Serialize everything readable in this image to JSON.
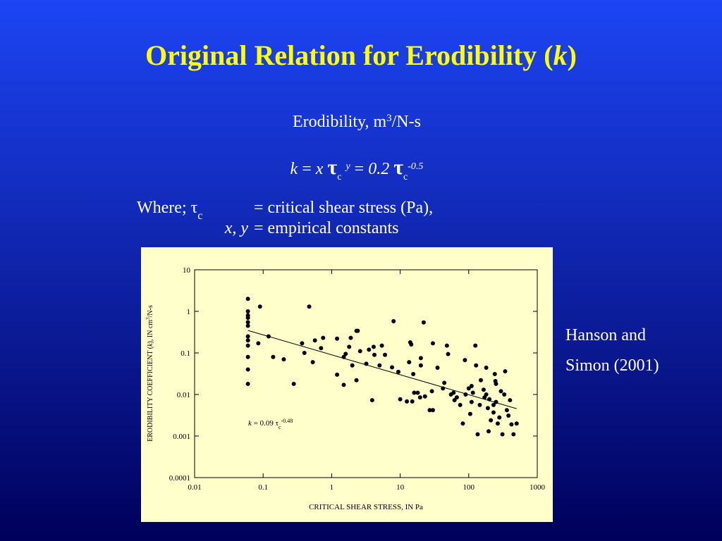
{
  "title": {
    "text": "Original Relation for Erodibility (",
    "italic": "k",
    "close": ")"
  },
  "subtitle": {
    "text": "Erodibility, m",
    "sup": "3",
    "rest": "/N-s"
  },
  "equation": {
    "k": "k",
    "eq": "=",
    "x": "x",
    "tau": "τ",
    "sub": "c",
    "y": "y",
    "coef": "0.2",
    "exp": "-0.5"
  },
  "where": {
    "lead": "Where;",
    "tau": "τ",
    "sub": "c",
    "def1": "= critical shear stress (Pa),",
    "vars": "x, y",
    "def2": "= empirical constants"
  },
  "citation": [
    "Hanson and",
    "Simon (2001)"
  ],
  "chart_data": {
    "type": "scatter",
    "x_label": "CRITICAL SHEAR STRESS, IN Pa",
    "y_label": {
      "a": "ERODIBILITY COEFFICIENT (",
      "k": "k",
      "b": "), IN cm",
      "sup": "3",
      "c": "/N-s"
    },
    "xlog": true,
    "ylog": true,
    "xlim": [
      0.01,
      1000
    ],
    "ylim": [
      0.0001,
      10
    ],
    "xticks": [
      0.01,
      0.1,
      1,
      10,
      100,
      1000
    ],
    "yticks": [
      0.0001,
      0.001,
      0.01,
      0.1,
      1,
      10
    ],
    "color": "#000000",
    "fit": {
      "k": "k",
      "eq": "=",
      "coefficient": 0.09,
      "tau": "τ",
      "sub": "c",
      "exponent": -0.48
    },
    "x": [
      0.06,
      0.06,
      0.06,
      0.06,
      0.06,
      0.06,
      0.06,
      0.06,
      0.06,
      0.06,
      0.06,
      0.06,
      0.09,
      0.085,
      0.12,
      0.14,
      0.2,
      0.28,
      0.37,
      0.4,
      0.47,
      0.53,
      0.57,
      0.75,
      0.7,
      1.2,
      1.2,
      1.5,
      1.5,
      1.6,
      1.8,
      1.9,
      2.3,
      2.4,
      2.0,
      2.6,
      2.3,
      3.5,
      3.2,
      4.1,
      4.2,
      3.9,
      5.0,
      5.4,
      6.0,
      8,
      7.6,
      9.4,
      10,
      12.5,
      13.5,
      14,
      14.5,
      15,
      15.5,
      16,
      18,
      19.5,
      20,
      22,
      20,
      23,
      27,
      29,
      30,
      30,
      35,
      42,
      44,
      48,
      50,
      55,
      60,
      62,
      67,
      75,
      82,
      88,
      90,
      100,
      105,
      110,
      115,
      125,
      128,
      135,
      145,
      150,
      165,
      170,
      180,
      190,
      195,
      200,
      210,
      230,
      240,
      245,
      250,
      265,
      280,
      295,
      310,
      330,
      340,
      360,
      380,
      400,
      420,
      450,
      500,
      250,
      180,
      110,
      230
    ],
    "y": [
      2,
      1,
      0.8,
      0.7,
      0.55,
      0.45,
      0.25,
      0.2,
      0.15,
      0.08,
      0.04,
      0.018,
      1.3,
      0.17,
      0.25,
      0.08,
      0.07,
      0.018,
      0.17,
      0.1,
      1.3,
      0.06,
      0.2,
      0.23,
      0.13,
      0.22,
      0.03,
      0.017,
      0.08,
      0.095,
      0.14,
      0.23,
      0.34,
      0.34,
      0.05,
      0.11,
      0.022,
      0.12,
      0.055,
      0.14,
      0.09,
      0.0073,
      0.05,
      0.15,
      0.09,
      0.58,
      0.045,
      0.035,
      0.0077,
      0.0068,
      0.06,
      0.18,
      0.16,
      0.0068,
      0.031,
      0.011,
      0.011,
      0.0085,
      0.05,
      0.54,
      0.075,
      0.009,
      0.0042,
      0.012,
      0.0042,
      0.17,
      0.044,
      0.014,
      0.019,
      0.15,
      0.094,
      0.01,
      0.011,
      0.0073,
      0.0085,
      0.0056,
      0.002,
      0.067,
      0.01,
      0.014,
      0.0034,
      0.016,
      0.011,
      0.15,
      0.05,
      0.0011,
      0.0056,
      0.022,
      0.013,
      0.0085,
      0.044,
      0.0047,
      0.0013,
      0.0077,
      0.0024,
      0.0037,
      0.031,
      0.021,
      0.0066,
      0.002,
      0.0028,
      0.012,
      0.0011,
      0.01,
      0.036,
      0.0042,
      0.0031,
      0.0073,
      0.0019,
      0.0011,
      0.002,
      0.018,
      0.01,
      0.0066,
      0.0056
    ]
  }
}
